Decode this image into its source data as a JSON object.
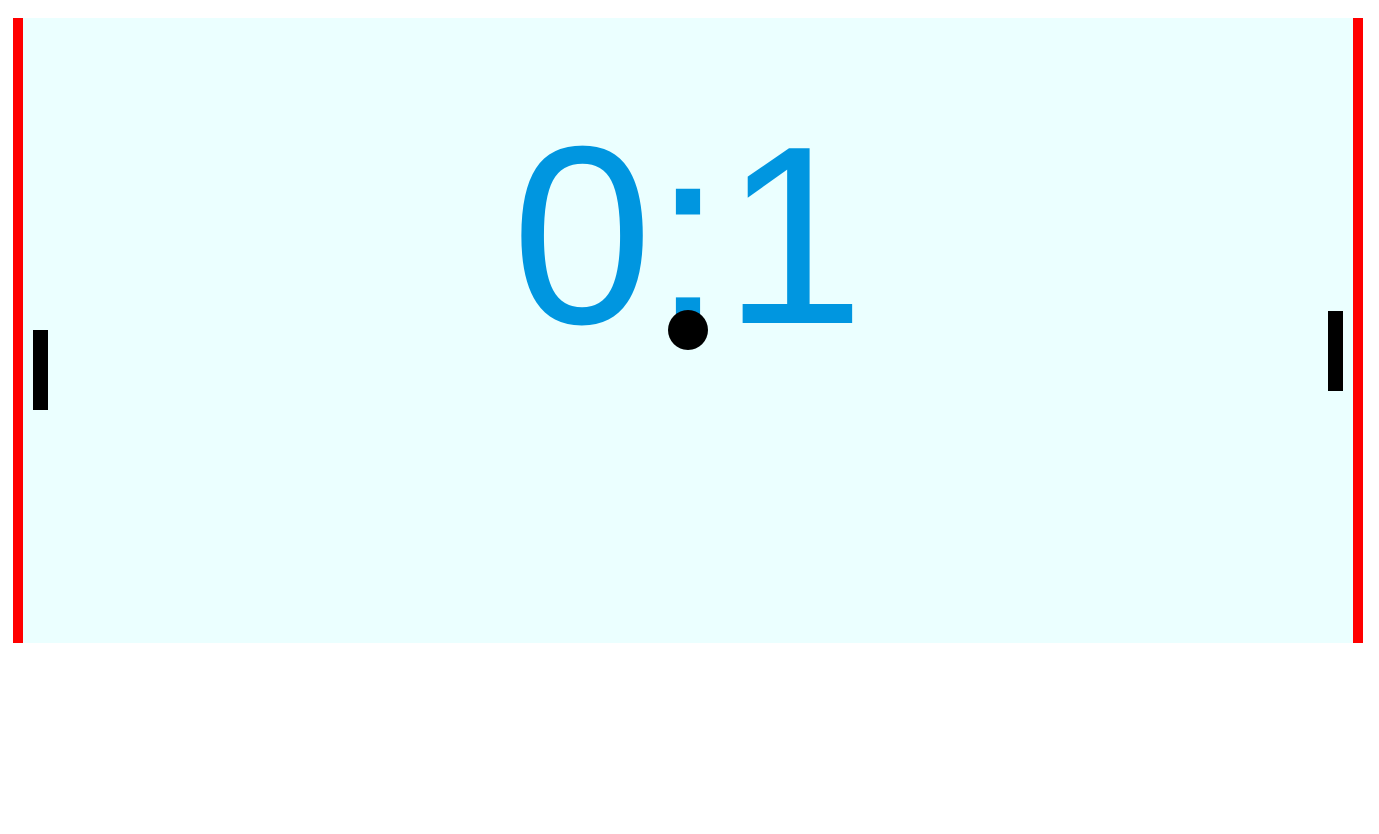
{
  "game": {
    "score": {
      "left": "0",
      "separator": ":",
      "right": "1"
    },
    "colors": {
      "court_background": "#ebffff",
      "goal_lines": "#ff0000",
      "score_text": "#0096e0",
      "paddles": "#000000",
      "ball": "#000000",
      "page_background": "#ffffff"
    },
    "objects": {
      "left_paddle": "paddle",
      "right_paddle": "paddle",
      "ball": "ball"
    }
  }
}
